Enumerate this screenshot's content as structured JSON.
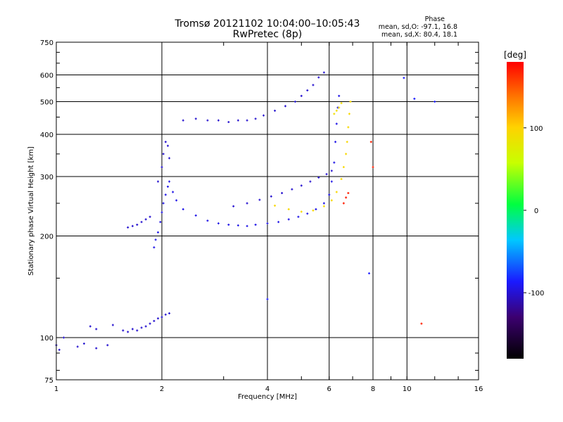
{
  "title": {
    "line1": "Tromsø 20121102 10:04:00–10:05:43",
    "line2": "RwPretec (8p)"
  },
  "phase_stats": {
    "heading": "Phase",
    "o_mode": "mean, sd,O: -97.1, 16.8",
    "x_mode": "mean, sd,X: 80.4, 18.1"
  },
  "colorbar": {
    "unit_label": "[deg]",
    "tick_labels": [
      "100",
      "0",
      "-100"
    ],
    "tick_values": [
      100,
      0,
      -100
    ],
    "range": [
      -180,
      180
    ]
  },
  "chart_data": {
    "type": "scatter",
    "xlabel": "Frequency [MHz]",
    "ylabel": "Stationary phase Virtual Height [km]",
    "x_scale": "log",
    "y_scale": "log",
    "xlim": [
      1,
      16
    ],
    "ylim": [
      75,
      750
    ],
    "x_ticks": [
      1,
      2,
      4,
      6,
      8,
      10,
      16
    ],
    "x_tick_labels": [
      "1",
      "2",
      "4",
      "6",
      "8",
      "10",
      "16"
    ],
    "y_ticks": [
      75,
      100,
      200,
      300,
      400,
      500,
      600,
      750
    ],
    "y_tick_labels": [
      "75",
      "100",
      "200",
      "300",
      "400",
      "500",
      "600",
      "750"
    ],
    "grid": true,
    "traces": [
      {
        "name": "",
        "phase": -110,
        "points": [
          [
            1.0,
            95
          ],
          [
            1.02,
            92
          ],
          [
            1.05,
            100
          ],
          [
            1.15,
            94
          ],
          [
            1.2,
            96
          ],
          [
            1.3,
            93
          ],
          [
            1.4,
            95
          ],
          [
            1.25,
            108
          ],
          [
            1.3,
            106
          ],
          [
            1.45,
            109
          ]
        ]
      },
      {
        "name": "",
        "phase": -110,
        "points": [
          [
            1.55,
            105
          ],
          [
            1.6,
            104
          ],
          [
            1.65,
            106
          ],
          [
            1.7,
            105
          ],
          [
            1.75,
            107
          ],
          [
            1.8,
            108
          ],
          [
            1.85,
            110
          ],
          [
            1.9,
            112
          ],
          [
            1.95,
            114
          ],
          [
            2.0,
            115
          ],
          [
            2.05,
            117
          ],
          [
            2.1,
            118
          ]
        ]
      },
      {
        "name": "",
        "phase": -110,
        "points": [
          [
            1.6,
            212
          ],
          [
            1.65,
            214
          ],
          [
            1.7,
            216
          ],
          [
            1.75,
            220
          ],
          [
            1.8,
            224
          ],
          [
            1.85,
            228
          ]
        ]
      },
      {
        "name": "",
        "phase": -105,
        "points": [
          [
            1.9,
            185
          ],
          [
            1.92,
            195
          ],
          [
            1.95,
            205
          ],
          [
            1.98,
            220
          ],
          [
            2.0,
            235
          ],
          [
            2.02,
            250
          ],
          [
            2.05,
            265
          ],
          [
            2.08,
            280
          ],
          [
            2.1,
            290
          ],
          [
            2.15,
            270
          ],
          [
            2.2,
            255
          ],
          [
            2.3,
            240
          ],
          [
            2.5,
            230
          ],
          [
            2.7,
            222
          ],
          [
            2.9,
            218
          ],
          [
            3.1,
            216
          ],
          [
            3.3,
            215
          ],
          [
            3.5,
            214
          ],
          [
            3.7,
            216
          ],
          [
            4.0,
            218
          ],
          [
            4.3,
            220
          ],
          [
            4.6,
            224
          ],
          [
            4.9,
            228
          ],
          [
            5.2,
            233
          ],
          [
            5.5,
            240
          ],
          [
            5.8,
            250
          ],
          [
            6.0,
            265
          ],
          [
            6.1,
            290
          ],
          [
            6.2,
            330
          ],
          [
            6.25,
            380
          ],
          [
            6.3,
            430
          ],
          [
            6.35,
            480
          ],
          [
            6.4,
            520
          ]
        ]
      },
      {
        "name": "",
        "phase": -110,
        "points": [
          [
            1.95,
            290
          ],
          [
            2.0,
            320
          ],
          [
            2.02,
            350
          ],
          [
            2.05,
            380
          ],
          [
            2.08,
            370
          ],
          [
            2.1,
            340
          ]
        ]
      },
      {
        "name": "",
        "phase": -110,
        "points": [
          [
            2.3,
            440
          ],
          [
            2.5,
            445
          ],
          [
            2.7,
            440
          ],
          [
            2.9,
            440
          ],
          [
            3.1,
            435
          ],
          [
            3.3,
            440
          ],
          [
            3.5,
            440
          ],
          [
            3.7,
            445
          ],
          [
            3.9,
            455
          ],
          [
            4.2,
            470
          ],
          [
            4.5,
            485
          ],
          [
            4.8,
            500
          ],
          [
            5.0,
            520
          ],
          [
            5.2,
            540
          ],
          [
            5.4,
            560
          ],
          [
            5.6,
            590
          ],
          [
            5.8,
            610
          ]
        ]
      },
      {
        "name": "",
        "phase": -110,
        "points": [
          [
            3.2,
            245
          ],
          [
            3.5,
            250
          ],
          [
            3.8,
            256
          ],
          [
            4.1,
            262
          ],
          [
            4.4,
            268
          ],
          [
            4.7,
            275
          ],
          [
            5.0,
            282
          ],
          [
            5.3,
            290
          ],
          [
            5.6,
            298
          ],
          [
            5.9,
            305
          ],
          [
            6.1,
            312
          ]
        ]
      },
      {
        "name": "",
        "phase": 95,
        "points": [
          [
            4.2,
            246
          ],
          [
            4.6,
            240
          ],
          [
            5.0,
            236
          ],
          [
            5.4,
            238
          ],
          [
            5.8,
            245
          ],
          [
            6.1,
            255
          ],
          [
            6.3,
            270
          ],
          [
            6.5,
            295
          ],
          [
            6.6,
            320
          ],
          [
            6.7,
            350
          ],
          [
            6.75,
            380
          ],
          [
            6.8,
            420
          ],
          [
            6.85,
            460
          ],
          [
            6.9,
            500
          ]
        ]
      },
      {
        "name": "",
        "phase": 90,
        "points": [
          [
            6.2,
            460
          ],
          [
            6.3,
            470
          ],
          [
            6.4,
            480
          ],
          [
            6.5,
            495
          ]
        ]
      },
      {
        "name": "",
        "phase": 170,
        "points": [
          [
            6.6,
            250
          ],
          [
            6.7,
            260
          ],
          [
            6.8,
            268
          ],
          [
            7.9,
            380
          ],
          [
            8.0,
            320
          ],
          [
            11.0,
            110
          ]
        ]
      },
      {
        "name": "",
        "phase": -100,
        "points": [
          [
            7.8,
            155
          ],
          [
            9.8,
            588
          ],
          [
            10.5,
            510
          ],
          [
            12.0,
            500
          ],
          [
            4.0,
            130
          ]
        ]
      }
    ]
  }
}
